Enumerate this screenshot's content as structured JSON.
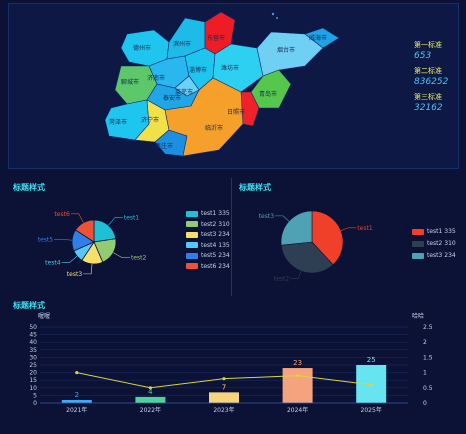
{
  "map": {
    "city_labels": [
      "济南市",
      "青岛市",
      "淄博市",
      "枣庄市",
      "东营市",
      "烟台市",
      "潍坊市",
      "济宁市",
      "泰安市",
      "威海市",
      "日照市",
      "临沂市",
      "德州市",
      "聊城市",
      "滨州市",
      "菏泽市",
      "莱芜市"
    ],
    "standards": [
      {
        "label": "第一标准",
        "value": "653"
      },
      {
        "label": "第二标准",
        "value": "836252"
      },
      {
        "label": "第三标准",
        "value": "32162"
      }
    ]
  },
  "pie1": {
    "title": "标题样式",
    "slices": [
      {
        "name": "test1",
        "value": 335,
        "color": "#1fbfd6",
        "display": "test1 335"
      },
      {
        "name": "test2",
        "value": 310,
        "color": "#91cc75",
        "display": "test2 310"
      },
      {
        "name": "test3",
        "value": 234,
        "color": "#f5e06b",
        "display": "test3 234"
      },
      {
        "name": "test4",
        "value": 135,
        "color": "#58c7f3",
        "display": "test4 135"
      },
      {
        "name": "test5",
        "value": 234,
        "color": "#2f7fe6",
        "display": "test5 234"
      },
      {
        "name": "test6",
        "value": 234,
        "color": "#ee5236",
        "display": "test6 234"
      }
    ]
  },
  "pie2": {
    "title": "标题样式",
    "slices": [
      {
        "name": "test1",
        "value": 335,
        "color": "#f0402a",
        "display": "test1 335"
      },
      {
        "name": "test2",
        "value": 310,
        "color": "#2e3f54",
        "display": "test2 310"
      },
      {
        "name": "test3",
        "value": 234,
        "color": "#4ea2b3",
        "display": "test3 234"
      }
    ]
  },
  "bar": {
    "title": "标题样式",
    "left_axis_name": "喔喔",
    "right_axis_name": "哈哈"
  },
  "chart_data": [
    {
      "type": "pie",
      "title": "标题样式",
      "categories": [
        "test1",
        "test2",
        "test3",
        "test4",
        "test5",
        "test6"
      ],
      "values": [
        335,
        310,
        234,
        135,
        234,
        234
      ],
      "legend": "right"
    },
    {
      "type": "pie",
      "title": "标题样式",
      "categories": [
        "test1",
        "test2",
        "test3"
      ],
      "values": [
        335,
        310,
        234
      ],
      "legend": "right"
    },
    {
      "type": "bar",
      "title": "标题样式",
      "categories": [
        "2021年",
        "2022年",
        "2023年",
        "2024年",
        "2025年"
      ],
      "series": [
        {
          "values": [
            2,
            4,
            7,
            23,
            25
          ],
          "axis": "left",
          "colors": [
            "#3fa9f5",
            "#4fd39c",
            "#f6d57d",
            "#f5a27e",
            "#66e4ef"
          ]
        },
        {
          "values": [
            1.0,
            0.5,
            0.8,
            0.9,
            0.6
          ],
          "axis": "right",
          "type": "line",
          "color": "#d9d443"
        }
      ],
      "ylim": [
        0,
        50
      ],
      "yticks": [
        0,
        5,
        10,
        15,
        20,
        25,
        30,
        35,
        40,
        45,
        50
      ],
      "y2lim": [
        0,
        2.5
      ],
      "y2ticks": [
        "0",
        "0.5",
        "1",
        "1.5",
        "2",
        "2.5"
      ],
      "ylabel": "喔喔",
      "y2label": "哈哈",
      "grid": true
    }
  ]
}
